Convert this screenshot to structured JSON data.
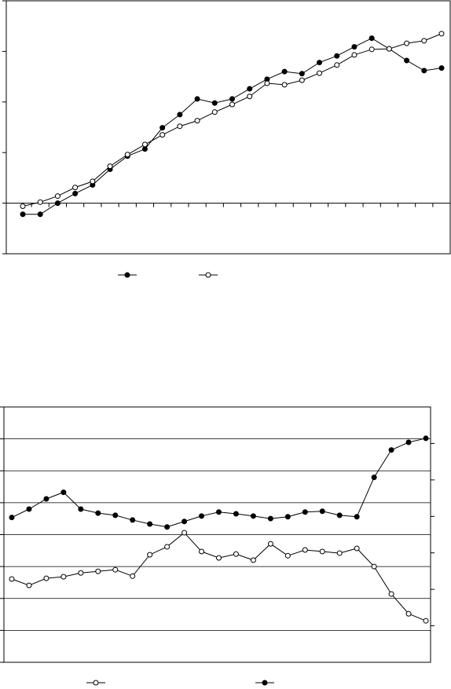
{
  "chart_data": [
    {
      "type": "line",
      "categories": [
        null,
        null,
        null,
        null,
        null,
        null,
        null,
        null,
        null,
        null,
        null,
        null,
        null,
        null,
        null,
        null,
        null,
        null,
        null,
        null,
        null,
        null,
        null,
        null,
        null
      ],
      "ylim": [
        -1,
        4
      ],
      "yticks": [
        -1,
        0,
        1,
        2,
        3,
        4
      ],
      "series": [
        {
          "color": "#000000",
          "marker": "filled",
          "values": [
            -0.22,
            -0.22,
            0,
            0.19,
            0.36,
            0.67,
            0.93,
            1.07,
            1.49,
            1.75,
            2.06,
            1.98,
            2.06,
            2.26,
            2.45,
            2.6,
            2.56,
            2.78,
            2.91,
            3.09,
            3.26,
            3.05,
            2.82,
            2.62,
            2.67
          ]
        },
        {
          "color": "#000000",
          "marker": "open",
          "values": [
            -0.06,
            0.02,
            0.14,
            0.31,
            0.43,
            0.73,
            0.96,
            1.16,
            1.35,
            1.52,
            1.63,
            1.8,
            1.95,
            2.11,
            2.37,
            2.34,
            2.43,
            2.57,
            2.73,
            2.93,
            3.04,
            3.05,
            3.16,
            3.21,
            3.35
          ]
        }
      ]
    },
    {
      "type": "line",
      "categories": [
        null,
        null,
        null,
        null,
        null,
        null,
        null,
        null,
        null,
        null,
        null,
        null,
        null,
        null,
        null,
        null,
        null,
        null,
        null,
        null,
        null,
        null,
        null,
        null,
        null
      ],
      "ylim": [
        -3,
        5
      ],
      "yticks": [
        -3,
        -2,
        -1,
        0,
        1,
        2,
        3,
        4,
        5
      ],
      "grid": true,
      "y2lim": [
        -1,
        6
      ],
      "y2ticks": [
        0,
        1,
        2,
        3,
        4,
        5
      ],
      "series": [
        {
          "color": "#000000",
          "marker": "open",
          "values": [
            -0.39,
            -0.59,
            -0.37,
            -0.32,
            -0.2,
            -0.15,
            -0.1,
            -0.3,
            0.37,
            0.62,
            1.06,
            0.47,
            0.27,
            0.39,
            0.2,
            0.71,
            0.34,
            0.52,
            0.47,
            0.42,
            0.57,
            0,
            -0.86,
            -1.48,
            -1.7
          ]
        },
        {
          "color": "#000000",
          "marker": "filled",
          "axis": "y2",
          "values": [
            2.97,
            3.2,
            3.48,
            3.66,
            3.2,
            3.09,
            3.03,
            2.9,
            2.79,
            2.71,
            2.86,
            3.01,
            3.12,
            3.07,
            3.01,
            2.94,
            2.99,
            3.12,
            3.14,
            3.03,
            2.99,
            4.07,
            4.82,
            5.03,
            5.14
          ]
        }
      ]
    }
  ]
}
